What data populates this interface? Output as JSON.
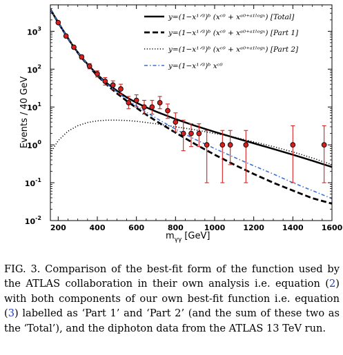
{
  "chart_data": {
    "type": "line",
    "xlabel": "m",
    "xlabel_subscript": "γγ",
    "xlabel_unit": "[GeV]",
    "ylabel": "Events / 40 GeV",
    "xlim": [
      160,
      1600
    ],
    "ylim": [
      0.01,
      5000
    ],
    "yscale": "log",
    "x_ticks": [
      200,
      400,
      600,
      800,
      1000,
      1200,
      1400,
      1600
    ],
    "y_ticks": [
      {
        "value": 0.01,
        "base": "10",
        "exp": "-2"
      },
      {
        "value": 0.1,
        "base": "10",
        "exp": "-1"
      },
      {
        "value": 1,
        "base": "10",
        "exp": "0"
      },
      {
        "value": 10,
        "base": "10",
        "exp": "1"
      },
      {
        "value": 100,
        "base": "10",
        "exp": "2"
      },
      {
        "value": 1000,
        "base": "10",
        "exp": "3"
      }
    ],
    "legend_position": "top-right",
    "series": [
      {
        "name": "y=(1−x^{1/3})^b (x^{c0} + x^{a0+a1 log x}) [Total]",
        "legend_text": "y=(1−x¹ᐟ³)ᵇ (xᶜ⁰ + xᵃ⁰⁺ᵃ¹ˡᵒᵍˣ) [Total]",
        "style": "solid",
        "color": "#000000",
        "x": [
          160,
          200,
          240,
          280,
          320,
          360,
          400,
          450,
          500,
          550,
          600,
          650,
          700,
          800,
          900,
          1000,
          1100,
          1200,
          1300,
          1400,
          1500,
          1600
        ],
        "y": [
          3800,
          1700,
          790,
          380,
          205,
          118,
          72,
          42,
          27,
          18,
          13,
          9.8,
          7.6,
          4.8,
          3.2,
          2.2,
          1.55,
          1.1,
          0.78,
          0.55,
          0.38,
          0.26
        ]
      },
      {
        "name": "y=(1−x^{1/3})^b (x^{c0} + x^{a0+a1 log x}) [Part 1]",
        "legend_text": "y=(1−x¹ᐟ³)ᵇ (xᶜ⁰ + xᵃ⁰⁺ᵃ¹ˡᵒᵍˣ) [Part 1]",
        "style": "dashed",
        "color": "#000000",
        "x": [
          160,
          200,
          240,
          280,
          320,
          360,
          400,
          450,
          500,
          550,
          600,
          650,
          700,
          800,
          900,
          1000,
          1100,
          1200,
          1300,
          1400,
          1500,
          1600
        ],
        "y": [
          3800,
          1700,
          785,
          375,
          200,
          113,
          67,
          38,
          23,
          14.5,
          9.5,
          6.3,
          4.3,
          2.1,
          1.05,
          0.55,
          0.3,
          0.17,
          0.1,
          0.062,
          0.039,
          0.028
        ]
      },
      {
        "name": "y=(1−x^{1/3})^b (x^{c0} + x^{a0+a1 log x}) [Part 2]",
        "legend_text": "y=(1−x¹ᐟ³)ᵇ (xᶜ⁰ + xᵃ⁰⁺ᵃ¹ˡᵒᵍˣ) [Part 2]",
        "style": "dotted",
        "color": "#000000",
        "x": [
          160,
          200,
          250,
          300,
          350,
          400,
          450,
          500,
          550,
          600,
          650,
          700,
          800,
          900,
          1000,
          1100,
          1200,
          1300,
          1400,
          1500,
          1600
        ],
        "y": [
          0.6,
          1.3,
          2.3,
          3.2,
          3.9,
          4.3,
          4.5,
          4.5,
          4.4,
          4.2,
          3.9,
          3.6,
          3.0,
          2.5,
          2.0,
          1.6,
          1.2,
          0.9,
          0.65,
          0.45,
          0.3
        ]
      },
      {
        "name": "y=(1−x^{1/3})^b x^{c0}",
        "legend_text": "y=(1−x¹ᐟ³)ᵇ xᶜ⁰",
        "style": "dashdot",
        "color": "#3a6fd8",
        "x": [
          160,
          200,
          240,
          280,
          320,
          360,
          400,
          450,
          500,
          550,
          600,
          650,
          700,
          800,
          900,
          1000,
          1100,
          1200,
          1300,
          1400,
          1500,
          1600
        ],
        "y": [
          3800,
          1700,
          785,
          378,
          203,
          116,
          70,
          40,
          25,
          16,
          10.8,
          7.3,
          5.1,
          2.6,
          1.4,
          0.8,
          0.47,
          0.28,
          0.17,
          0.1,
          0.062,
          0.038
        ]
      }
    ],
    "data_points": {
      "name": "ATLAS 13 TeV diphoton data",
      "color": "#d62020",
      "points": [
        {
          "x": 200,
          "y": 1700,
          "lo": 1620,
          "hi": 1780
        },
        {
          "x": 240,
          "y": 750,
          "lo": 700,
          "hi": 800
        },
        {
          "x": 280,
          "y": 380,
          "lo": 345,
          "hi": 415
        },
        {
          "x": 320,
          "y": 210,
          "lo": 185,
          "hi": 235
        },
        {
          "x": 360,
          "y": 120,
          "lo": 102,
          "hi": 140
        },
        {
          "x": 400,
          "y": 75,
          "lo": 62,
          "hi": 90
        },
        {
          "x": 440,
          "y": 48,
          "lo": 38,
          "hi": 60
        },
        {
          "x": 480,
          "y": 38,
          "lo": 29,
          "hi": 49
        },
        {
          "x": 520,
          "y": 30,
          "lo": 22,
          "hi": 40
        },
        {
          "x": 560,
          "y": 13,
          "lo": 9,
          "hi": 19
        },
        {
          "x": 600,
          "y": 15,
          "lo": 10,
          "hi": 21
        },
        {
          "x": 640,
          "y": 10,
          "lo": 6.5,
          "hi": 15
        },
        {
          "x": 680,
          "y": 10,
          "lo": 6.5,
          "hi": 15
        },
        {
          "x": 720,
          "y": 13,
          "lo": 9,
          "hi": 19
        },
        {
          "x": 760,
          "y": 8,
          "lo": 5,
          "hi": 12
        },
        {
          "x": 800,
          "y": 4,
          "lo": 2.2,
          "hi": 7
        },
        {
          "x": 840,
          "y": 2,
          "lo": 0.7,
          "hi": 4.5
        },
        {
          "x": 880,
          "y": 2,
          "lo": 0.9,
          "hi": 3.6
        },
        {
          "x": 920,
          "y": 2,
          "lo": 0.9,
          "hi": 3.6
        },
        {
          "x": 960,
          "y": 1,
          "lo": 0.1,
          "hi": 2.4
        },
        {
          "x": 1040,
          "y": 1,
          "lo": 0.1,
          "hi": 2.4
        },
        {
          "x": 1080,
          "y": 1,
          "lo": 0.3,
          "hi": 2.4
        },
        {
          "x": 1160,
          "y": 1,
          "lo": 0.1,
          "hi": 2.4
        },
        {
          "x": 1400,
          "y": 1,
          "lo": 0.1,
          "hi": 3.2
        },
        {
          "x": 1560,
          "y": 1,
          "lo": 0.1,
          "hi": 3.2
        }
      ]
    }
  },
  "caption": {
    "fig_label": "FIG. 3.",
    "text_1": " Comparison of the best-fit form of the function used by the ATLAS collaboration in their own analysis i.e. equation (",
    "ref_1": "2",
    "text_2": ") with both components of our own best-fit function i.e. equation (",
    "ref_2": "3",
    "text_3": ") labelled as ‘Part 1’ and ‘Part 2’ (and the sum of these two as the ‘Total’), and the diphoton data from the ATLAS 13 TeV run."
  }
}
